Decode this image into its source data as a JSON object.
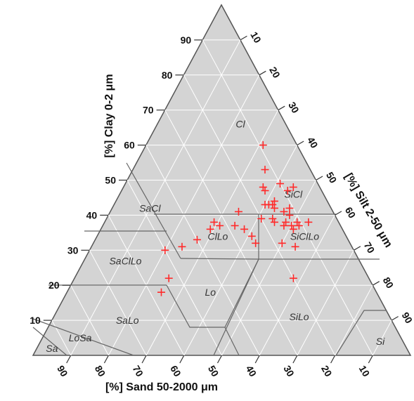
{
  "chart_data": {
    "type": "scatter",
    "subtype": "ternary",
    "axes": {
      "clay": {
        "label": "[%] Clay 0-2 μm",
        "ticks": [
          "10",
          "20",
          "30",
          "40",
          "50",
          "60",
          "70",
          "80",
          "90"
        ]
      },
      "silt": {
        "label": "[%] Silt 2-50 μm",
        "ticks": [
          "10",
          "20",
          "30",
          "40",
          "50",
          "60",
          "70",
          "80",
          "90"
        ]
      },
      "sand": {
        "label": "[%] Sand 50-2000 μm",
        "ticks": [
          "90",
          "80",
          "70",
          "60",
          "50",
          "40",
          "30",
          "20",
          "10"
        ]
      }
    },
    "grid": true,
    "class_labels": [
      {
        "name": "Cl",
        "clay": 66,
        "silt": 22
      },
      {
        "name": "SaCl",
        "clay": 42,
        "silt": 10
      },
      {
        "name": "SiCl",
        "clay": 46,
        "silt": 46
      },
      {
        "name": "ClLo",
        "clay": 34,
        "silt": 32
      },
      {
        "name": "SiClLo",
        "clay": 34,
        "silt": 55
      },
      {
        "name": "SaClLo",
        "clay": 27,
        "silt": 11
      },
      {
        "name": "Lo",
        "clay": 18,
        "silt": 38
      },
      {
        "name": "SaLo",
        "clay": 10,
        "silt": 20
      },
      {
        "name": "SiLo",
        "clay": 11,
        "silt": 65
      },
      {
        "name": "LoSa",
        "clay": 5,
        "silt": 10
      },
      {
        "name": "Sa",
        "clay": 2,
        "silt": 4
      },
      {
        "name": "Si",
        "clay": 4,
        "silt": 90
      }
    ],
    "series": [
      {
        "marker": "cross",
        "color": "#ff2a2a",
        "points": [
          {
            "clay": 60,
            "silt": 31
          },
          {
            "clay": 53,
            "silt": 35
          },
          {
            "clay": 49,
            "silt": 41
          },
          {
            "clay": 48,
            "silt": 37
          },
          {
            "clay": 47,
            "silt": 38
          },
          {
            "clay": 48,
            "silt": 45
          },
          {
            "clay": 47,
            "silt": 44
          },
          {
            "clay": 44,
            "silt": 42
          },
          {
            "clay": 43,
            "silt": 40
          },
          {
            "clay": 43,
            "silt": 42
          },
          {
            "clay": 42,
            "silt": 43
          },
          {
            "clay": 42,
            "silt": 47
          },
          {
            "clay": 41,
            "silt": 46
          },
          {
            "clay": 40,
            "silt": 48
          },
          {
            "clay": 39,
            "silt": 41
          },
          {
            "clay": 39,
            "silt": 44
          },
          {
            "clay": 38,
            "silt": 45
          },
          {
            "clay": 38,
            "silt": 48
          },
          {
            "clay": 38,
            "silt": 51
          },
          {
            "clay": 37,
            "silt": 52
          },
          {
            "clay": 37,
            "silt": 48
          },
          {
            "clay": 37,
            "silt": 50
          },
          {
            "clay": 37,
            "silt": 35
          },
          {
            "clay": 37,
            "silt": 31
          },
          {
            "clay": 36,
            "silt": 38
          },
          {
            "clay": 36,
            "silt": 51
          },
          {
            "clay": 34,
            "silt": 41
          },
          {
            "clay": 32,
            "silt": 50
          },
          {
            "clay": 32,
            "silt": 43
          },
          {
            "clay": 31,
            "silt": 54
          },
          {
            "clay": 31,
            "silt": 24
          },
          {
            "clay": 30,
            "silt": 20
          },
          {
            "clay": 33,
            "silt": 27
          },
          {
            "clay": 22,
            "silt": 58
          },
          {
            "clay": 22,
            "silt": 25
          },
          {
            "clay": 18,
            "silt": 25
          },
          {
            "clay": 36,
            "silt": 29
          },
          {
            "clay": 38,
            "silt": 29
          },
          {
            "clay": 41,
            "silt": 34
          },
          {
            "clay": 43,
            "silt": 41
          },
          {
            "clay": 38,
            "silt": 54
          }
        ]
      }
    ]
  }
}
